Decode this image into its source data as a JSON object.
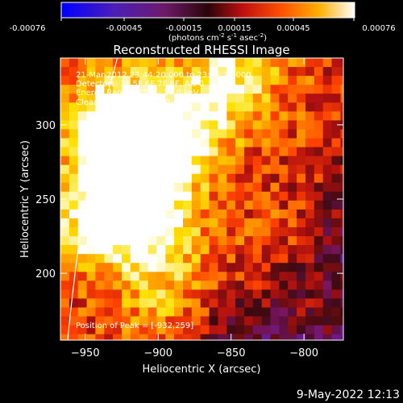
{
  "colorbar": {
    "min": -0.00076,
    "max": 0.00076,
    "ticks": [
      "-0.00076",
      "-0.00045",
      "-0.00015",
      "0.00015",
      "0.00045",
      "0.00076"
    ],
    "unit_prefix": "(photons cm",
    "unit_exp1": "-2",
    "unit_mid": " s",
    "unit_exp2": "-1",
    "unit_mid2": " asec",
    "unit_exp3": "-2",
    "unit_suffix": ")"
  },
  "chart_data": {
    "type": "heatmap",
    "title": "Reconstructed RHESSI Image",
    "xlabel": "Heliocentric X (arcsec)",
    "ylabel": "Heliocentric Y (arcsec)",
    "xlim": [
      -967,
      -773
    ],
    "ylim": [
      155,
      345
    ],
    "xticks": [
      -950,
      -900,
      -850,
      -800
    ],
    "yticks": [
      200,
      250,
      300
    ],
    "colormap": [
      "#0000ff",
      "#5a20b0",
      "#7a1560",
      "#3a0a10",
      "#b01010",
      "#ff4000",
      "#ff9a00",
      "#ffe000",
      "#ffffff"
    ],
    "limb_curve": [
      [
        -928,
        345
      ],
      [
        -935,
        320
      ],
      [
        -942,
        290
      ],
      [
        -948,
        260
      ],
      [
        -953,
        230
      ],
      [
        -957,
        200
      ],
      [
        -960,
        175
      ],
      [
        -962,
        155
      ]
    ],
    "peak": [
      -932,
      259
    ],
    "hot_spots": [
      {
        "x": -905,
        "y": 275,
        "intensity": 0.85
      },
      {
        "x": -935,
        "y": 300,
        "intensity": 0.8
      },
      {
        "x": -920,
        "y": 240,
        "intensity": 0.75
      },
      {
        "x": -930,
        "y": 265,
        "intensity": 0.9
      },
      {
        "x": -910,
        "y": 310,
        "intensity": 0.7
      },
      {
        "x": -880,
        "y": 290,
        "intensity": 0.6
      },
      {
        "x": -895,
        "y": 220,
        "intensity": 0.55
      },
      {
        "x": -860,
        "y": 325,
        "intensity": 0.5
      },
      {
        "x": -840,
        "y": 335,
        "intensity": 0.45
      },
      {
        "x": -945,
        "y": 230,
        "intensity": 0.6
      },
      {
        "x": -900,
        "y": 180,
        "intensity": 0.35
      },
      {
        "x": -790,
        "y": 175,
        "intensity": 0.35
      },
      {
        "x": -815,
        "y": 215,
        "intensity": 0.25
      }
    ],
    "annotations": [
      "21-Mar-2012 23:44:20.000 to 23:45:32.000",
      "Detectors: 3F 5F 6F 7F 8F, Att 0",
      "Energy Range: 12.0 - 25.0 keV",
      "Clean     Total counts: 770."
    ],
    "peak_label": "Position of Peak = [-932,259]"
  },
  "footer": {
    "date": "9-May-2022 12:13"
  }
}
